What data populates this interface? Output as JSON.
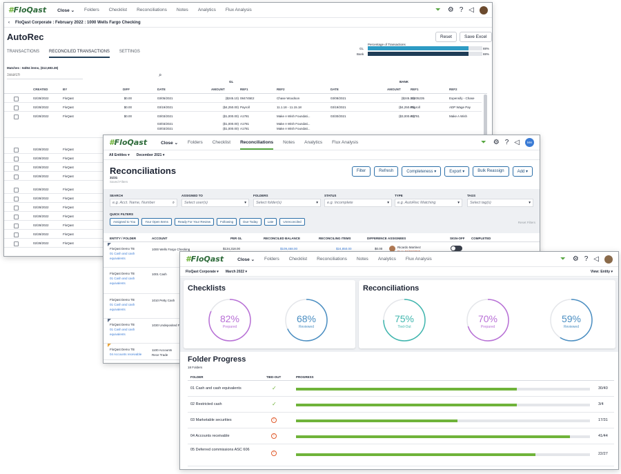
{
  "w1": {
    "nav": {
      "logo": "FloQast",
      "close": "Close",
      "items": [
        "Folders",
        "Checklist",
        "Reconciliations",
        "Notes",
        "Analytics",
        "Flux Analysis"
      ]
    },
    "breadcrumb": "FloQast Corporate : February 2022 : 1000 Wells Fargo Checking",
    "title": "AutoRec",
    "reset": "Reset",
    "save": "Save Excel",
    "pct_title": "Percentage of Transactions",
    "gl_label": "GL",
    "gl_pct": "88%",
    "gl_value": 0.88,
    "bank_label": "Bank",
    "bank_pct": "88%",
    "bank_value": 0.88,
    "tabs": [
      "TRANSACTIONS",
      "RECONCILED TRANSACTIONS",
      "SETTINGS"
    ],
    "matches": "Matches : 64/84 items, ($12,683.28)",
    "search_placeholder": "Search",
    "gl_group": "GL",
    "bank_group": "BANK",
    "headers": [
      "CREATED",
      "BY",
      "DIFF",
      "DATE",
      "AMOUNT",
      "REF1",
      "REF2",
      "DATE",
      "AMOUNT",
      "REF1",
      "REF2"
    ],
    "rows": [
      [
        "02/28/2022",
        "FloQast",
        "$0.00",
        "03/05/2021",
        "($245.10)",
        "084745E2",
        "Chase Woodson",
        "03/08/2021",
        "($245.10)",
        "32405235",
        "Expensify - Chase"
      ],
      [
        "02/28/2022",
        "FloQast",
        "$0.00",
        "03/19/2021",
        "($4,250.00)",
        "Payroll",
        "11.1.18 - 11.15.18",
        "03/19/2021",
        "($4,250.00)",
        "Payroll",
        "ADP Wage Pay"
      ],
      [
        "02/28/2022",
        "FloQast",
        "$0.00",
        "03/03/2021",
        "($1,000.00)",
        "A1781",
        "Make A Wish Foundati...",
        "03/30/2021",
        "($3,000.00)",
        "A1781",
        "Make A Wish"
      ]
    ],
    "row3_extra": [
      [
        "03/03/2021",
        "($1,000.00)",
        "A1781",
        "Make A Wish Foundati..."
      ],
      [
        "03/03/2021",
        "($1,000.00)",
        "A1781",
        "Make A Wish Foundati..."
      ]
    ],
    "rest_rows": [
      [
        "02/28/2022",
        "FloQast"
      ],
      [
        "02/28/2022",
        "FloQast"
      ],
      [
        "02/28/2022",
        "FloQast"
      ],
      [
        "02/28/2022",
        "FloQast"
      ],
      [
        "02/28/2022",
        "FloQast"
      ],
      [
        "02/28/2022",
        "FloQast"
      ],
      [
        "02/28/2022",
        "FloQast"
      ],
      [
        "02/28/2022",
        "FloQast"
      ],
      [
        "02/28/2022",
        "FloQast"
      ],
      [
        "02/28/2022",
        "FloQast"
      ],
      [
        "02/28/2022",
        "FloQast"
      ]
    ]
  },
  "w2": {
    "nav": {
      "logo": "FloQast",
      "close": "Close",
      "items": [
        "Folders",
        "Checklist",
        "Reconciliations",
        "Notes",
        "Analytics",
        "Flux Analysis"
      ],
      "avatar": "MH"
    },
    "entity": "All Entities",
    "period": "December 2021",
    "title": "Reconciliations",
    "count": "31/31",
    "saved": "Saved Filters",
    "buttons": [
      "Filter",
      "Refresh",
      "Completeness",
      "Export",
      "Bulk Reassign",
      "Add"
    ],
    "filters": [
      {
        "label": "SEARCH",
        "ph": "e.g. Acct. Name, Number"
      },
      {
        "label": "ASSIGNED TO",
        "ph": "Select user(s)"
      },
      {
        "label": "FOLDERS",
        "ph": "Select folder(s)"
      },
      {
        "label": "STATUS",
        "ph": "e.g. Incomplete"
      },
      {
        "label": "TYPE",
        "ph": "e.g. AutoRec Matching"
      },
      {
        "label": "TAGS",
        "ph": "Select tag(s)"
      }
    ],
    "quick_label": "QUICK FILTERS",
    "quick": [
      "Assigned to You",
      "Your Open Items",
      "Ready For Your Review",
      "Following",
      "Due Today",
      "Late",
      "Unreconciled"
    ],
    "reset_filters": "Reset Filters",
    "headers": [
      "ENTITY / FOLDER",
      "ACCOUNT",
      "PER GL",
      "RECONCILED BALANCE",
      "RECONCILING ITEMS",
      "DIFFERENCE",
      "ASSIGNEES",
      "SIGN-OFF",
      "COMPLETED"
    ],
    "rows": [
      {
        "entity": "FloQast Demo TB",
        "folder": "01 Cash and cash equivalents",
        "account": "1000 Wells Fargo Checking",
        "gl": "$134,318.00",
        "rec": "$109,468.00",
        "items": "$24,850.00",
        "diff": "$0.00",
        "assignee": "Ricardo Martinez",
        "date": "Due: 01/06/2022"
      },
      {
        "entity": "FloQast Demo TB",
        "folder": "01 Cash and cash equivalents",
        "account": "1001 Cash"
      },
      {
        "entity": "FloQast Demo TB",
        "folder": "01 Cash and cash equivalents",
        "account": "1010 Petty Cash"
      },
      {
        "entity": "FloQast Demo TB",
        "folder": "01 Cash and cash equivalents",
        "account": "1030 Undeposited F"
      },
      {
        "entity": "FloQast Demo TB",
        "folder": "04 Accounts receivable",
        "account": "1100 Accounts Rece Trade"
      }
    ]
  },
  "w3": {
    "nav": {
      "logo": "FloQast",
      "close": "Close",
      "items": [
        "Folders",
        "Checklist",
        "Reconciliations",
        "Notes",
        "Analytics",
        "Flux Analysis"
      ]
    },
    "entity": "FloQast Corporate",
    "period": "March 2022",
    "view": "View: Entity",
    "checklists_title": "Checklists",
    "recs_title": "Reconciliations",
    "donuts": [
      {
        "pct": "82%",
        "label": "Prepared",
        "value": 0.82,
        "color": "#b86fd6"
      },
      {
        "pct": "68%",
        "label": "Reviewed",
        "value": 0.68,
        "color": "#4a8ec2"
      },
      {
        "pct": "75%",
        "label": "Tied-Out",
        "value": 0.75,
        "color": "#3fb6ae"
      },
      {
        "pct": "70%",
        "label": "Prepared",
        "value": 0.7,
        "color": "#b86fd6"
      },
      {
        "pct": "59%",
        "label": "Reviewed",
        "value": 0.59,
        "color": "#4a8ec2"
      }
    ],
    "folder_title": "Folder Progress",
    "folder_count": "18 Folders",
    "col_folder": "FOLDER",
    "col_tied": "TIED-OUT",
    "col_progress": "PROGRESS",
    "folders": [
      {
        "name": "01 Cash and cash equivalents",
        "tied": "check",
        "done": 30,
        "total": 40,
        "label": "30/40"
      },
      {
        "name": "02 Restricted cash",
        "tied": "check",
        "done": 3,
        "total": 4,
        "label": "3/4"
      },
      {
        "name": "03 Marketable securities",
        "tied": "warn",
        "done": 17,
        "total": 31,
        "label": "17/31"
      },
      {
        "name": "04 Accounts receivable",
        "tied": "warn",
        "done": 41,
        "total": 44,
        "label": "41/44"
      },
      {
        "name": "05 Deferred commissions ASC 606",
        "tied": "warn",
        "done": 22,
        "total": 27,
        "label": "22/27"
      }
    ]
  },
  "colors": {
    "green": "#6fb33a",
    "accent_blue": "#3a7bd5",
    "gl_bar": "#2e9bc4",
    "bank_bar": "#1f3d57",
    "warn": "#e0592a"
  }
}
